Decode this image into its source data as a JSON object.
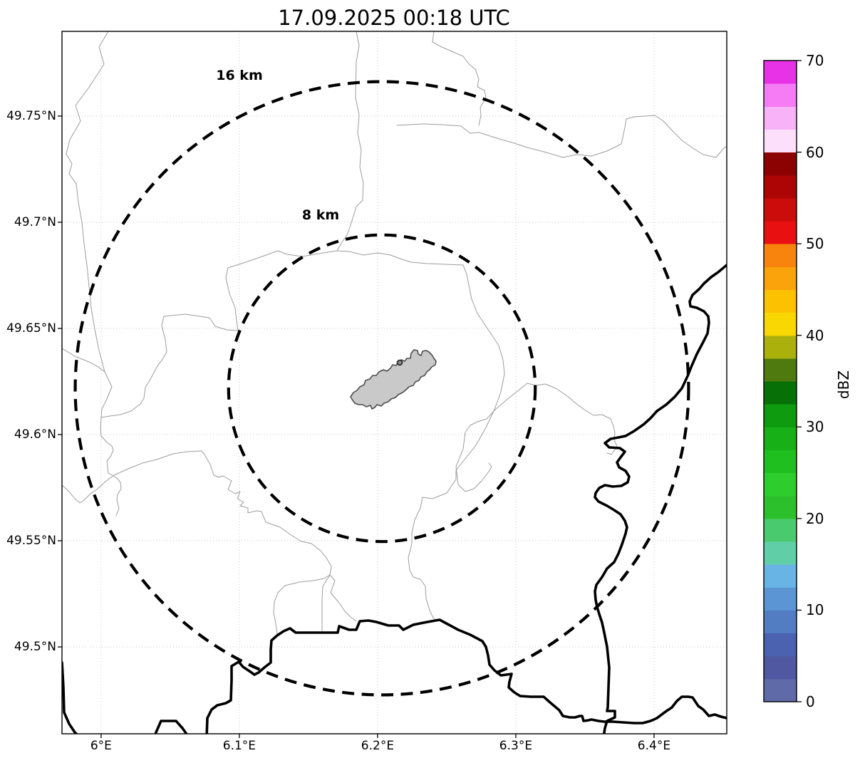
{
  "title": "17.09.2025 00:18 UTC",
  "map": {
    "range_rings": [
      {
        "label": "16 km",
        "radius_km": 16
      },
      {
        "label": "8 km",
        "radius_km": 8
      }
    ],
    "x_axis": {
      "tick_labels": [
        "6°E",
        "6.1°E",
        "6.2°E",
        "6.3°E",
        "6.4°E"
      ],
      "tick_values": [
        6.0,
        6.1,
        6.2,
        6.3,
        6.4
      ]
    },
    "y_axis": {
      "tick_labels": [
        "49.75°N",
        "49.7°N",
        "49.65°N",
        "49.6°N",
        "49.55°N",
        "49.5°N"
      ],
      "tick_values": [
        49.75,
        49.7,
        49.65,
        49.6,
        49.55,
        49.5
      ]
    }
  },
  "colorbar": {
    "label": "dBZ",
    "range": [
      0,
      70
    ],
    "tick_values": [
      0,
      10,
      20,
      30,
      40,
      50,
      60,
      70
    ],
    "segments": [
      {
        "from": 0,
        "to": 2.5,
        "color": "#5f6aa8"
      },
      {
        "from": 2.5,
        "to": 5,
        "color": "#4f58a0"
      },
      {
        "from": 5,
        "to": 7.5,
        "color": "#4a62b0"
      },
      {
        "from": 7.5,
        "to": 10,
        "color": "#527dc2"
      },
      {
        "from": 10,
        "to": 12.5,
        "color": "#5b95d4"
      },
      {
        "from": 12.5,
        "to": 15,
        "color": "#68b4e4"
      },
      {
        "from": 15,
        "to": 17.5,
        "color": "#60cfa8"
      },
      {
        "from": 17.5,
        "to": 20,
        "color": "#4aca6e"
      },
      {
        "from": 20,
        "to": 22.5,
        "color": "#2cc12c"
      },
      {
        "from": 22.5,
        "to": 25,
        "color": "#2ecd2e"
      },
      {
        "from": 25,
        "to": 27.5,
        "color": "#1fbf1f"
      },
      {
        "from": 27.5,
        "to": 30,
        "color": "#17b117"
      },
      {
        "from": 30,
        "to": 32.5,
        "color": "#0f9b0f"
      },
      {
        "from": 32.5,
        "to": 35,
        "color": "#077107"
      },
      {
        "from": 35,
        "to": 37.5,
        "color": "#4e7a10"
      },
      {
        "from": 37.5,
        "to": 40,
        "color": "#abb00c"
      },
      {
        "from": 40,
        "to": 42.5,
        "color": "#f8d703"
      },
      {
        "from": 42.5,
        "to": 45,
        "color": "#fcc201"
      },
      {
        "from": 45,
        "to": 47.5,
        "color": "#fba30a"
      },
      {
        "from": 47.5,
        "to": 50,
        "color": "#f8840e"
      },
      {
        "from": 50,
        "to": 52.5,
        "color": "#e81010"
      },
      {
        "from": 52.5,
        "to": 55,
        "color": "#cc0b0b"
      },
      {
        "from": 55,
        "to": 57.5,
        "color": "#ad0505"
      },
      {
        "from": 57.5,
        "to": 60,
        "color": "#8c0101"
      },
      {
        "from": 60,
        "to": 62.5,
        "color": "#fbdffb"
      },
      {
        "from": 62.5,
        "to": 65,
        "color": "#f8b2f8"
      },
      {
        "from": 65,
        "to": 67.5,
        "color": "#f57cf5"
      },
      {
        "from": 67.5,
        "to": 70,
        "color": "#e832e8"
      }
    ]
  }
}
